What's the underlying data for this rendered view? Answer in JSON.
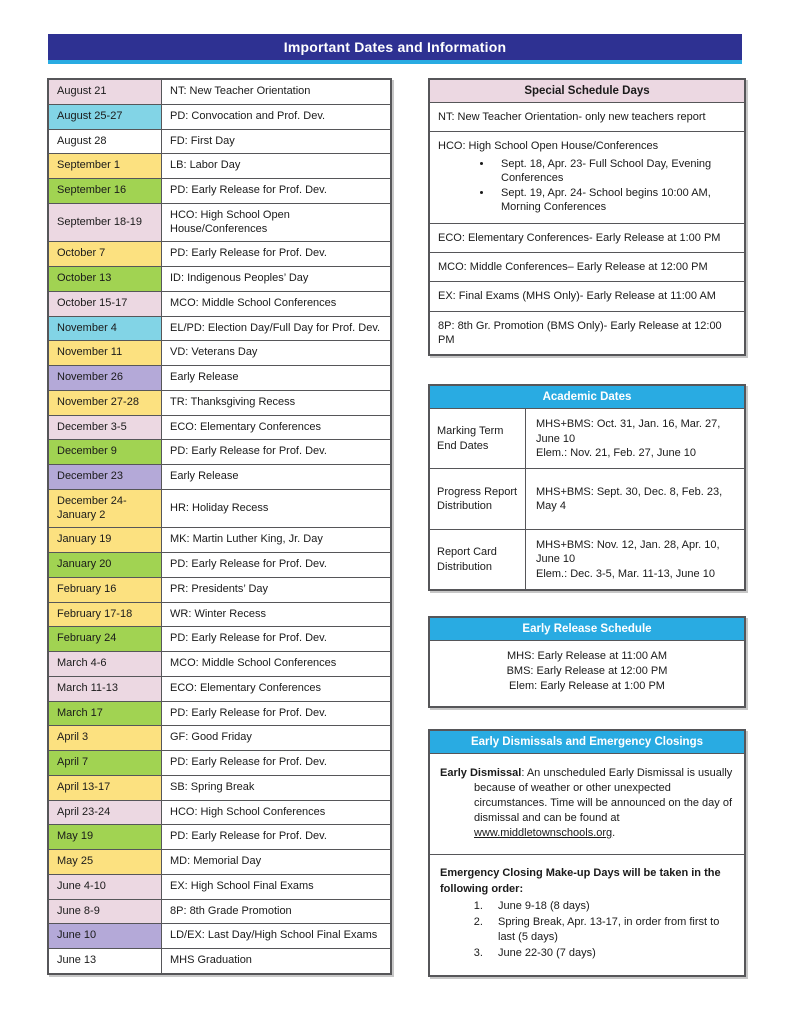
{
  "title": "Important Dates and Information",
  "colors": {
    "banner_navy": "#2e3192",
    "accent_cyan": "#29abe2",
    "border_gray": "#565659",
    "row_colors": {
      "pink": "#ecd8e2",
      "cyan": "#82d4e6",
      "yellow": "#fce180",
      "green": "#a1d352",
      "purple": "#b4a9d8",
      "white": "#ffffff"
    }
  },
  "dates_table": {
    "rows": [
      {
        "date": "August 21",
        "description": "NT: New Teacher Orientation",
        "color": "pink"
      },
      {
        "date": "August 25-27",
        "description": "PD: Convocation and Prof. Dev.",
        "color": "cyan"
      },
      {
        "date": "August 28",
        "description": "FD: First Day",
        "color": "white"
      },
      {
        "date": "September 1",
        "description": "LB: Labor Day",
        "color": "yellow"
      },
      {
        "date": "September 16",
        "description": "PD: Early Release for Prof. Dev.",
        "color": "green"
      },
      {
        "date": "September 18-19",
        "description": "HCO: High School Open House/Conferences",
        "color": "pink"
      },
      {
        "date": "October 7",
        "description": "PD: Early Release for Prof. Dev.",
        "color": "yellow"
      },
      {
        "date": "October 13",
        "description": "ID: Indigenous Peoples’ Day",
        "color": "green"
      },
      {
        "date": "October 15-17",
        "description": "MCO: Middle School Conferences",
        "color": "pink"
      },
      {
        "date": "November 4",
        "description": "EL/PD: Election Day/Full Day for Prof. Dev.",
        "color": "cyan"
      },
      {
        "date": "November 11",
        "description": "VD: Veterans Day",
        "color": "yellow"
      },
      {
        "date": "November 26",
        "description": "Early Release",
        "color": "purple"
      },
      {
        "date": "November 27-28",
        "description": "TR: Thanksgiving Recess",
        "color": "yellow"
      },
      {
        "date": "December 3-5",
        "description": "ECO: Elementary Conferences",
        "color": "pink"
      },
      {
        "date": "December 9",
        "description": "PD: Early Release for Prof. Dev.",
        "color": "green"
      },
      {
        "date": "December 23",
        "description": "Early Release",
        "color": "purple"
      },
      {
        "date": "December 24-January 2",
        "description": "HR: Holiday Recess",
        "color": "yellow"
      },
      {
        "date": "January 19",
        "description": "MK: Martin Luther King, Jr. Day",
        "color": "yellow"
      },
      {
        "date": "January 20",
        "description": "PD: Early Release for Prof. Dev.",
        "color": "green"
      },
      {
        "date": "February 16",
        "description": "PR: Presidents’ Day",
        "color": "yellow"
      },
      {
        "date": "February 17-18",
        "description": "WR: Winter Recess",
        "color": "yellow"
      },
      {
        "date": "February 24",
        "description": "PD: Early Release for Prof. Dev.",
        "color": "green"
      },
      {
        "date": "March 4-6",
        "description": "MCO: Middle School Conferences",
        "color": "pink"
      },
      {
        "date": "March 11-13",
        "description": "ECO: Elementary Conferences",
        "color": "pink"
      },
      {
        "date": "March 17",
        "description": "PD: Early Release for Prof. Dev.",
        "color": "green"
      },
      {
        "date": "April 3",
        "description": "GF: Good Friday",
        "color": "yellow"
      },
      {
        "date": "April 7",
        "description": "PD: Early Release for Prof. Dev.",
        "color": "green"
      },
      {
        "date": "April 13-17",
        "description": "SB: Spring Break",
        "color": "yellow"
      },
      {
        "date": "April 23-24",
        "description": "HCO: High School Conferences",
        "color": "pink"
      },
      {
        "date": "May 19",
        "description": "PD: Early Release for Prof. Dev.",
        "color": "green"
      },
      {
        "date": "May 25",
        "description": "MD: Memorial Day",
        "color": "yellow"
      },
      {
        "date": "June 4-10",
        "description": "EX: High School Final Exams",
        "color": "pink"
      },
      {
        "date": "June 8-9",
        "description": "8P: 8th Grade Promotion",
        "color": "pink"
      },
      {
        "date": "June 10",
        "description": "LD/EX: Last Day/High School Final Exams",
        "color": "purple"
      },
      {
        "date": "June 13",
        "description": "MHS Graduation",
        "color": "white"
      }
    ]
  },
  "special_schedule": {
    "title": "Special Schedule Days",
    "rows": [
      {
        "text": "NT: New Teacher Orientation- only new teachers report"
      },
      {
        "text": "HCO: High School Open House/Conferences",
        "bullets": [
          "Sept. 18, Apr. 23- Full School Day, Evening Conferences",
          "Sept. 19, Apr. 24- School begins 10:00 AM, Morning Conferences"
        ]
      },
      {
        "text": "ECO: Elementary Conferences- Early Release at 1:00 PM"
      },
      {
        "text": "MCO: Middle Conferences– Early Release at 12:00 PM"
      },
      {
        "text": "EX: Final Exams (MHS Only)- Early Release at 11:00 AM"
      },
      {
        "text": "8P: 8th Gr. Promotion (BMS Only)- Early Release at 12:00 PM"
      }
    ]
  },
  "academic_dates": {
    "title": "Academic Dates",
    "rows": [
      {
        "label": "Marking Term End Dates",
        "lines": [
          "MHS+BMS: Oct. 31, Jan. 16, Mar. 27, June 10",
          "Elem.: Nov. 21, Feb. 27, June 10"
        ]
      },
      {
        "label": "Progress Report Distribution",
        "lines": [
          "MHS+BMS: Sept. 30, Dec. 8, Feb. 23, May 4"
        ]
      },
      {
        "label": "Report Card Distribution",
        "lines": [
          "MHS+BMS: Nov. 12, Jan. 28, Apr. 10, June 10",
          "Elem.: Dec. 3-5, Mar. 11-13, June 10"
        ]
      }
    ]
  },
  "early_release": {
    "title": "Early Release Schedule",
    "lines": [
      "MHS: Early Release at 11:00 AM",
      "BMS: Early Release at 12:00 PM",
      "Elem: Early Release at 1:00 PM"
    ]
  },
  "dismissals": {
    "title": "Early Dismissals and Emergency Closings",
    "early_dismissal_label": "Early Dismissal",
    "early_dismissal_text": ": An unscheduled Early Dismissal is usually because of weather or other unexpected circumstances. Time will be announced on the day of dismissal and can be found at ",
    "link": "www.middletownschools.org",
    "after_link": ".",
    "makeup_heading": "Emergency Closing Make-up Days will be taken in the following order:",
    "makeup_items": [
      "June 9-18 (8 days)",
      "Spring Break, Apr. 13-17, in order from first to last (5 days)",
      "June 22-30 (7 days)"
    ]
  }
}
